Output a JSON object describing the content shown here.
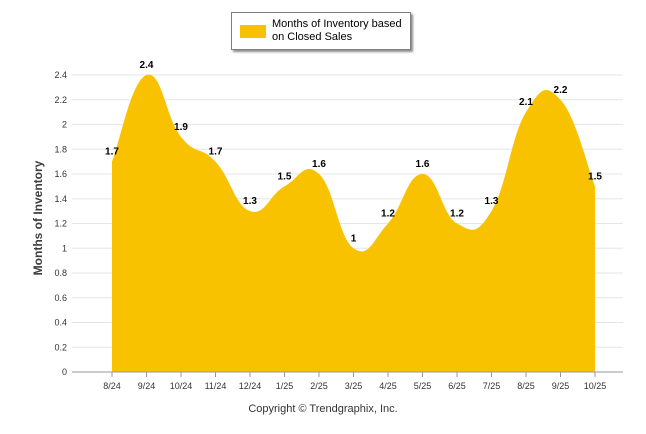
{
  "legend": {
    "label": "Months of Inventory based on Closed Sales"
  },
  "footer": {
    "copyright": "Copyright © Trendgraphix, Inc."
  },
  "colors": {
    "series": "#F8C200",
    "grid": "#e6e6e6",
    "axis": "#999999"
  },
  "chart_data": {
    "type": "area",
    "title": "",
    "xlabel": "",
    "ylabel": "Months of Inventory",
    "categories": [
      "8/24",
      "9/24",
      "10/24",
      "11/24",
      "12/24",
      "1/25",
      "2/25",
      "3/25",
      "4/25",
      "5/25",
      "6/25",
      "7/25",
      "8/25",
      "9/25",
      "10/25"
    ],
    "series": [
      {
        "name": "Months of Inventory based on Closed Sales",
        "values": [
          1.7,
          2.4,
          1.9,
          1.7,
          1.3,
          1.5,
          1.6,
          1,
          1.2,
          1.6,
          1.2,
          1.3,
          2.1,
          2.2,
          1.5
        ]
      }
    ],
    "data_labels": [
      "1.7",
      "2.4",
      "1.9",
      "1.7",
      "1.3",
      "1.5",
      "1.6",
      "1",
      "1.2",
      "1.6",
      "1.2",
      "1.3",
      "2.1",
      "2.2",
      "1.5"
    ],
    "yticks": [
      0,
      0.2,
      0.4,
      0.6,
      0.8,
      1,
      1.2,
      1.4,
      1.6,
      1.8,
      2,
      2.2,
      2.4
    ],
    "ytick_labels": [
      "0",
      "0.2",
      "0.4",
      "0.6",
      "0.8",
      "1",
      "1.2",
      "1.4",
      "1.6",
      "1.8",
      "2",
      "2.2",
      "2.4"
    ],
    "ylim": [
      0,
      2.4
    ],
    "grid": true,
    "legend_position": "top-center"
  }
}
